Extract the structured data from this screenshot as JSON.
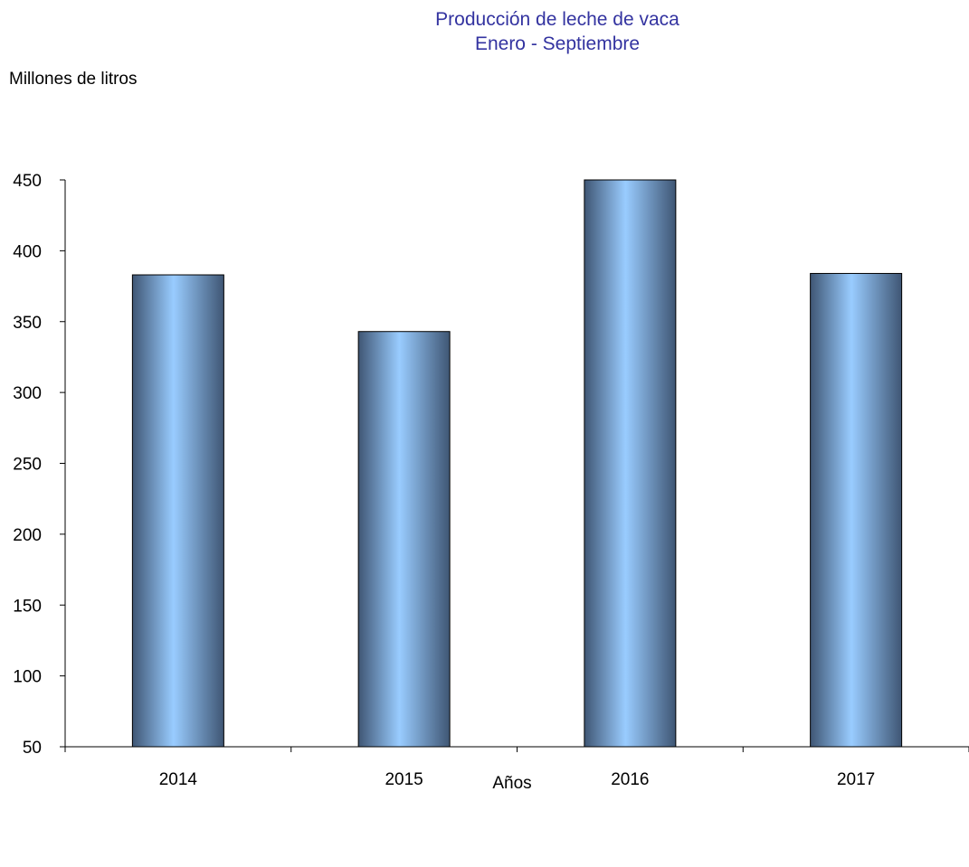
{
  "chart_data": {
    "type": "bar",
    "title": "Producción de leche de vaca",
    "subtitle": "Enero - Septiembre",
    "ylabel": "Millones de litros",
    "xlabel": "Años",
    "categories": [
      "2014",
      "2015",
      "2016",
      "2017"
    ],
    "values": [
      383,
      343,
      450,
      384
    ],
    "ylim": [
      50,
      450
    ],
    "yticks": [
      50,
      100,
      150,
      200,
      250,
      300,
      350,
      400,
      450
    ],
    "grid": false,
    "legend": "none",
    "colors": {
      "title": "#3333a0",
      "bar_edge": "#3f5674",
      "bar_center": "#99ccff",
      "axis": "#000000"
    }
  }
}
